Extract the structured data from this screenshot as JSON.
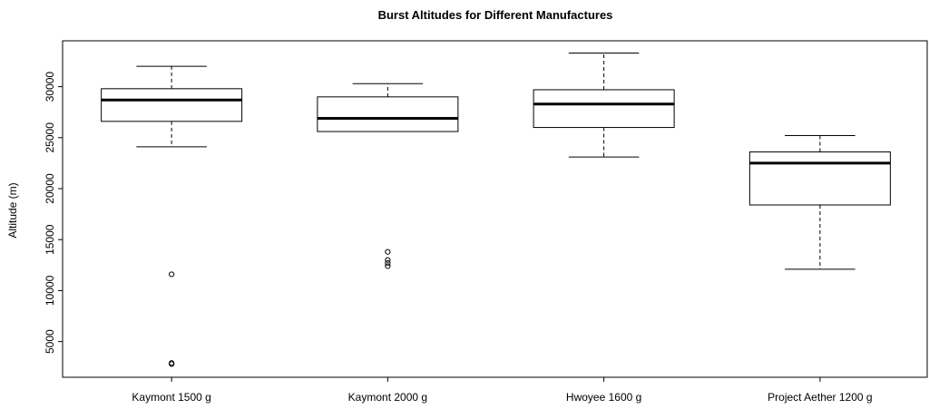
{
  "chart_data": {
    "type": "boxplot",
    "title": "Burst Altitudes for Different Manufactures",
    "xlabel": "",
    "ylabel": "Altitude (m)",
    "ylim": [
      1500,
      34500
    ],
    "y_ticks": [
      5000,
      10000,
      15000,
      20000,
      25000,
      30000
    ],
    "grid": false,
    "categories": [
      "Kaymont 1500 g",
      "Kaymont 2000 g",
      "Hwoyee 1600 g",
      "Project Aether 1200 g"
    ],
    "boxes": [
      {
        "name": "Kaymont 1500 g",
        "whisker_low": 24100,
        "q1": 26600,
        "median": 28700,
        "q3": 29800,
        "whisker_high": 32000,
        "outliers": [
          11600,
          2900,
          2800
        ]
      },
      {
        "name": "Kaymont 2000 g",
        "whisker_low": 25600,
        "q1": 25600,
        "median": 26900,
        "q3": 29000,
        "whisker_high": 30300,
        "outliers": [
          13800,
          13000,
          12700,
          12400
        ]
      },
      {
        "name": "Hwoyee 1600 g",
        "whisker_low": 23100,
        "q1": 26000,
        "median": 28300,
        "q3": 29700,
        "whisker_high": 33300,
        "outliers": []
      },
      {
        "name": "Project Aether 1200 g",
        "whisker_low": 12100,
        "q1": 18400,
        "median": 22500,
        "q3": 23600,
        "whisker_high": 25200,
        "outliers": []
      }
    ]
  }
}
